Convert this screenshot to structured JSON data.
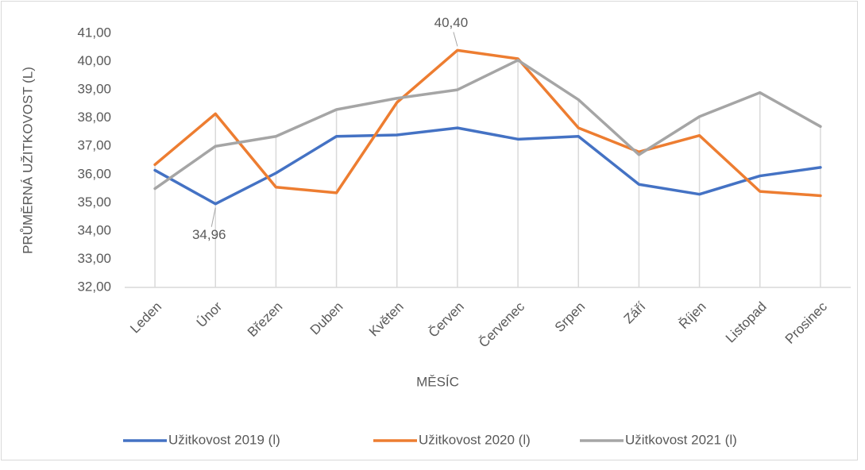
{
  "chart_data": {
    "type": "line",
    "x_label": "MĚSÍC",
    "y_label": "PRŮMĚRNÁ UŽITKOVOST (L)",
    "categories": [
      "Leden",
      "Únor",
      "Březen",
      "Duben",
      "Květen",
      "Červen",
      "Červenec",
      "Srpen",
      "Září",
      "Říjen",
      "Listopad",
      "Prosinec"
    ],
    "series": [
      {
        "name": "Užitkovost 2019 (l)",
        "color": "#4472c4",
        "values": [
          36.15,
          34.96,
          36.05,
          37.35,
          37.4,
          37.65,
          37.25,
          37.35,
          35.65,
          35.3,
          35.95,
          36.25
        ],
        "value_labels": [
          null,
          "34,96",
          null,
          null,
          null,
          null,
          null,
          null,
          null,
          null,
          null,
          null
        ]
      },
      {
        "name": "Užitkovost 2020 (l)",
        "color": "#ed7d31",
        "values": [
          36.35,
          38.15,
          35.55,
          35.35,
          38.55,
          40.4,
          40.1,
          37.65,
          36.8,
          37.38,
          35.4,
          35.25
        ],
        "value_labels": [
          null,
          null,
          null,
          null,
          null,
          "40,40",
          null,
          null,
          null,
          null,
          null,
          null
        ]
      },
      {
        "name": "Užitkovost 2021 (l)",
        "color": "#a5a5a5",
        "values": [
          35.5,
          37.0,
          37.35,
          38.3,
          38.7,
          39.0,
          40.05,
          38.65,
          36.7,
          38.05,
          38.9,
          37.7
        ]
      }
    ],
    "ylim": [
      32,
      41
    ],
    "yticks": [
      {
        "value": 32,
        "label": "32,00"
      },
      {
        "value": 33,
        "label": "33,00"
      },
      {
        "value": 34,
        "label": "34,00"
      },
      {
        "value": 35,
        "label": "35,00"
      },
      {
        "value": 36,
        "label": "36,00"
      },
      {
        "value": 37,
        "label": "37,00"
      },
      {
        "value": 38,
        "label": "38,00"
      },
      {
        "value": 39,
        "label": "39,00"
      },
      {
        "value": 40,
        "label": "40,00"
      },
      {
        "value": 41,
        "label": "41,00"
      }
    ],
    "legend": "bottom",
    "drop_lines": true
  }
}
